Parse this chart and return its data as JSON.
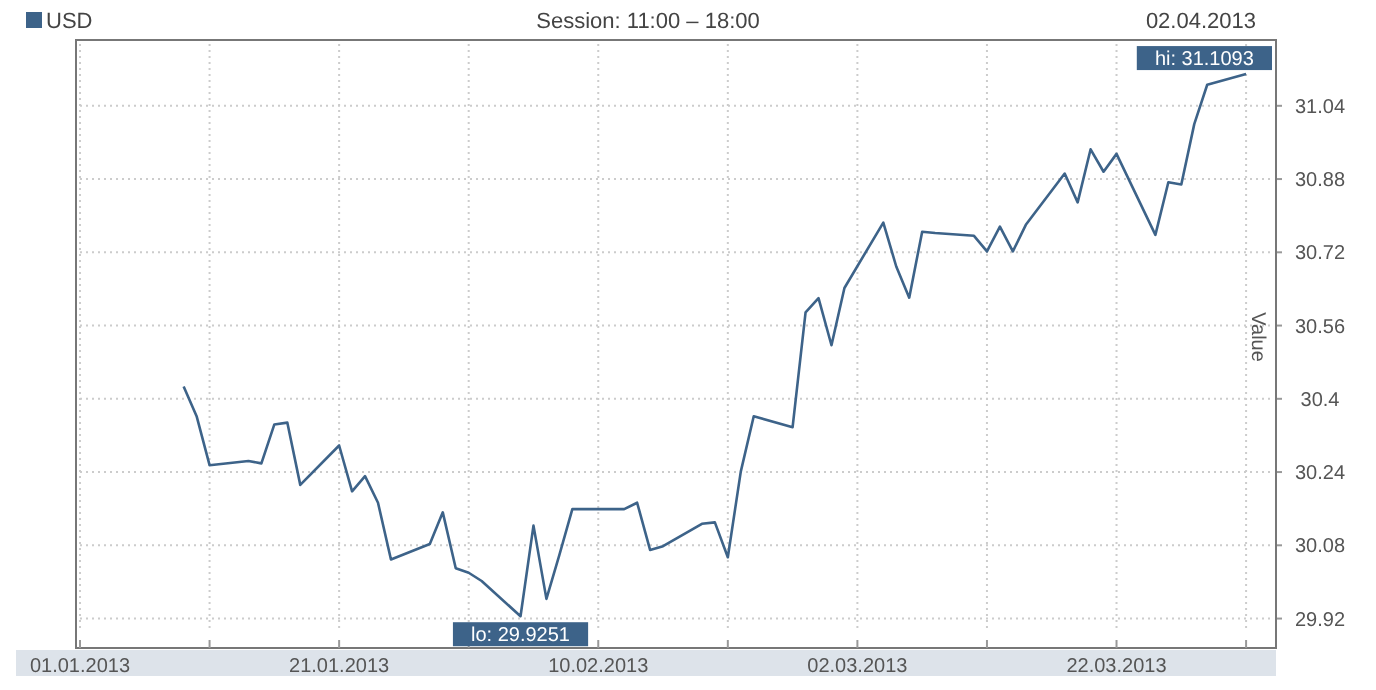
{
  "chart_data": {
    "type": "line",
    "title": "Session: 11:00 – 18:00",
    "ylabel": "Value",
    "annotations": [
      "02.04.2013",
      {
        "text": "hi: 31.1093",
        "x": "2013-04-01",
        "y": 31.1093
      },
      {
        "text": "lo: 29.9251",
        "x": "2013-02-04",
        "y": 29.9251
      }
    ],
    "x": [
      "2013-01-09",
      "2013-01-10",
      "2013-01-11",
      "2013-01-14",
      "2013-01-15",
      "2013-01-16",
      "2013-01-17",
      "2013-01-18",
      "2013-01-21",
      "2013-01-22",
      "2013-01-23",
      "2013-01-24",
      "2013-01-25",
      "2013-01-28",
      "2013-01-29",
      "2013-01-30",
      "2013-01-31",
      "2013-02-01",
      "2013-02-04",
      "2013-02-05",
      "2013-02-06",
      "2013-02-07",
      "2013-02-08",
      "2013-02-11",
      "2013-02-12",
      "2013-02-13",
      "2013-02-14",
      "2013-02-15",
      "2013-02-18",
      "2013-02-19",
      "2013-02-20",
      "2013-02-21",
      "2013-02-22",
      "2013-02-25",
      "2013-02-26",
      "2013-02-27",
      "2013-02-28",
      "2013-03-01",
      "2013-03-04",
      "2013-03-05",
      "2013-03-06",
      "2013-03-07",
      "2013-03-08",
      "2013-03-11",
      "2013-03-12",
      "2013-03-13",
      "2013-03-14",
      "2013-03-15",
      "2013-03-18",
      "2013-03-19",
      "2013-03-20",
      "2013-03-21",
      "2013-03-22",
      "2013-03-25",
      "2013-03-26",
      "2013-03-27",
      "2013-03-28",
      "2013-03-29",
      "2013-04-01"
    ],
    "series": [
      {
        "name": "USD",
        "color": "#3d6389",
        "values": [
          30.427,
          30.362,
          30.255,
          30.264,
          30.259,
          30.344,
          30.348,
          30.212,
          30.298,
          30.198,
          30.231,
          30.173,
          30.049,
          30.083,
          30.152,
          30.03,
          30.02,
          30.002,
          29.9251,
          30.123,
          29.963,
          30.059,
          30.159,
          30.159,
          30.159,
          30.173,
          30.07,
          30.078,
          30.127,
          30.13,
          30.054,
          30.241,
          30.362,
          30.338,
          30.589,
          30.62,
          30.517,
          30.642,
          30.785,
          30.689,
          30.621,
          30.765,
          30.762,
          30.756,
          30.722,
          30.776,
          30.722,
          30.78,
          30.892,
          30.829,
          30.945,
          30.896,
          30.935,
          30.758,
          30.873,
          30.868,
          31.0,
          31.086,
          31.1093
        ]
      }
    ],
    "xlim": [
      "2013-01-01",
      "2013-04-03"
    ],
    "xticks": [
      {
        "value": "2013-01-01",
        "label": "01.01.2013"
      },
      {
        "value": "2013-01-11",
        "label": null
      },
      {
        "value": "2013-01-21",
        "label": "21.01.2013"
      },
      {
        "value": "2013-01-31",
        "label": null
      },
      {
        "value": "2013-02-10",
        "label": "10.02.2013"
      },
      {
        "value": "2013-02-20",
        "label": null
      },
      {
        "value": "2013-03-02",
        "label": "02.03.2013"
      },
      {
        "value": "2013-03-12",
        "label": null
      },
      {
        "value": "2013-03-22",
        "label": "22.03.2013"
      },
      {
        "value": "2013-04-01",
        "label": null
      }
    ],
    "ylim": [
      29.895,
      31.175
    ],
    "yticks": [
      29.92,
      30.08,
      30.24,
      30.4,
      30.56,
      30.72,
      30.88,
      31.04
    ],
    "grid": true,
    "legend": "top left",
    "marker": "none",
    "line_style": "solid"
  }
}
